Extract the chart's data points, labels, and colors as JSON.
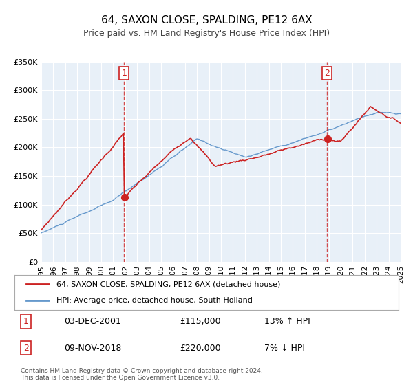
{
  "title": "64, SAXON CLOSE, SPALDING, PE12 6AX",
  "subtitle": "Price paid vs. HM Land Registry's House Price Index (HPI)",
  "red_line_label": "64, SAXON CLOSE, SPALDING, PE12 6AX (detached house)",
  "blue_line_label": "HPI: Average price, detached house, South Holland",
  "marker1_date_idx": 2001.92,
  "marker1_value": 115000,
  "marker1_label": "03-DEC-2001",
  "marker1_price": "£115,000",
  "marker1_hpi": "13% ↑ HPI",
  "marker2_date_idx": 2018.86,
  "marker2_value": 220000,
  "marker2_label": "09-NOV-2018",
  "marker2_price": "£220,000",
  "marker2_hpi": "7% ↓ HPI",
  "ylim": [
    0,
    350000
  ],
  "xlim": [
    1995,
    2025
  ],
  "footer": "Contains HM Land Registry data © Crown copyright and database right 2024.\nThis data is licensed under the Open Government Licence v3.0.",
  "background_color": "#ffffff",
  "plot_bg_color": "#e8f0f8",
  "grid_color": "#ffffff",
  "red_color": "#cc2222",
  "blue_color": "#6699cc"
}
